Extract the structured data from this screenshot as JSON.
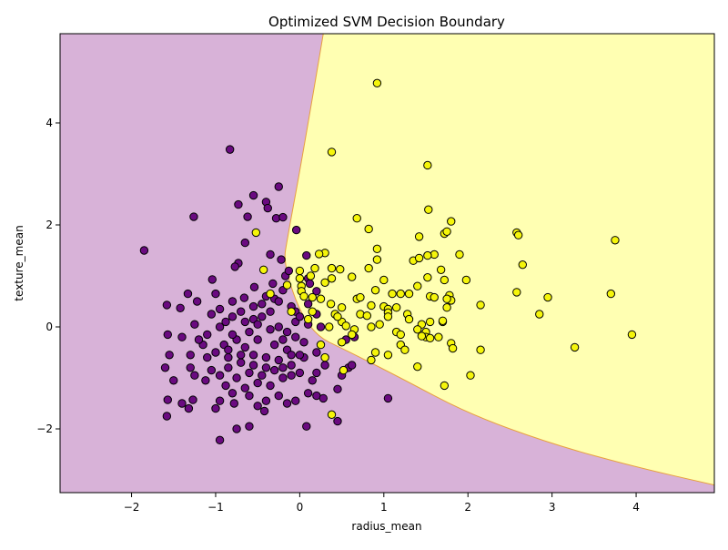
{
  "chart_data": {
    "type": "scatter",
    "title": "Optimized SVM Decision Boundary",
    "xlabel": "radius_mean",
    "ylabel": "texture_mean",
    "xlim": [
      -2.85,
      4.93
    ],
    "ylim": [
      -3.25,
      5.75
    ],
    "x_ticks": [
      -2,
      -1,
      0,
      1,
      2,
      3,
      4
    ],
    "y_ticks": [
      -2,
      0,
      2,
      4
    ],
    "grid": false,
    "legend": "none",
    "region_colors": {
      "class_0": "#d8b2d8",
      "class_1": "#ffffb2",
      "boundary": "#e8a040"
    },
    "boundary_curve": [
      [
        0.28,
        5.75
      ],
      [
        0.05,
        3.5
      ],
      [
        -0.14,
        1.8
      ],
      [
        -0.2,
        1.2
      ],
      [
        0.1,
        -0.1
      ],
      [
        0.6,
        -0.5
      ],
      [
        1.2,
        -1.0
      ],
      [
        2.0,
        -1.7
      ],
      [
        3.0,
        -2.3
      ],
      [
        4.0,
        -2.75
      ],
      [
        4.93,
        -3.1
      ]
    ],
    "series": [
      {
        "color": "#6a0a80",
        "points": [
          [
            -1.85,
            1.5
          ],
          [
            -0.83,
            3.48
          ],
          [
            -0.25,
            2.75
          ],
          [
            -0.73,
            2.4
          ],
          [
            -0.4,
            2.45
          ],
          [
            -0.55,
            2.58
          ],
          [
            -1.26,
            2.16
          ],
          [
            -0.62,
            2.16
          ],
          [
            -0.38,
            2.33
          ],
          [
            -0.28,
            2.13
          ],
          [
            -0.2,
            2.15
          ],
          [
            -0.04,
            1.9
          ],
          [
            -0.65,
            1.65
          ],
          [
            -0.35,
            1.42
          ],
          [
            -0.73,
            1.25
          ],
          [
            -0.77,
            1.18
          ],
          [
            0.08,
            1.4
          ],
          [
            -0.22,
            1.32
          ],
          [
            -1.04,
            0.93
          ],
          [
            -0.17,
            1.0
          ],
          [
            -0.13,
            1.1
          ],
          [
            -1.33,
            0.65
          ],
          [
            -1.22,
            0.5
          ],
          [
            -1.42,
            0.37
          ],
          [
            -1.58,
            0.43
          ],
          [
            -1.0,
            0.65
          ],
          [
            -0.8,
            0.5
          ],
          [
            -0.66,
            0.57
          ],
          [
            -0.54,
            0.78
          ],
          [
            -0.32,
            0.85
          ],
          [
            -0.2,
            0.72
          ],
          [
            -0.45,
            0.45
          ],
          [
            -0.35,
            0.3
          ],
          [
            -0.55,
            0.15
          ],
          [
            -0.88,
            0.1
          ],
          [
            -1.05,
            0.25
          ],
          [
            -1.25,
            0.05
          ],
          [
            -1.4,
            -0.2
          ],
          [
            -1.57,
            -0.15
          ],
          [
            -1.15,
            -0.35
          ],
          [
            -1.3,
            -0.55
          ],
          [
            -1.55,
            -0.55
          ],
          [
            -1.6,
            -0.8
          ],
          [
            -1.5,
            -1.05
          ],
          [
            -1.3,
            -0.8
          ],
          [
            -1.25,
            -0.95
          ],
          [
            -1.12,
            -1.05
          ],
          [
            -1.05,
            -0.85
          ],
          [
            -0.95,
            -0.95
          ],
          [
            -0.88,
            -1.15
          ],
          [
            -0.8,
            -1.3
          ],
          [
            -0.95,
            -1.45
          ],
          [
            -0.78,
            -1.5
          ],
          [
            -0.6,
            -1.35
          ],
          [
            -0.5,
            -1.55
          ],
          [
            -0.4,
            -1.45
          ],
          [
            -0.42,
            -1.65
          ],
          [
            -0.6,
            -1.95
          ],
          [
            -0.75,
            -2.0
          ],
          [
            -0.95,
            -2.22
          ],
          [
            -1.32,
            -1.6
          ],
          [
            -1.4,
            -1.5
          ],
          [
            -1.58,
            -1.75
          ],
          [
            -1.57,
            -1.43
          ],
          [
            -1.27,
            -1.43
          ],
          [
            -1.0,
            -1.6
          ],
          [
            -0.25,
            -1.35
          ],
          [
            -0.15,
            -1.5
          ],
          [
            -0.05,
            -1.45
          ],
          [
            0.1,
            -1.3
          ],
          [
            0.2,
            -1.35
          ],
          [
            0.28,
            -1.4
          ],
          [
            0.08,
            -1.95
          ],
          [
            0.45,
            -1.85
          ],
          [
            1.05,
            -1.4
          ],
          [
            0.45,
            -1.22
          ],
          [
            0.15,
            -1.05
          ],
          [
            0.0,
            -0.9
          ],
          [
            -0.1,
            -0.75
          ],
          [
            0.05,
            -0.6
          ],
          [
            0.2,
            -0.5
          ],
          [
            0.3,
            -0.75
          ],
          [
            0.2,
            -0.9
          ],
          [
            0.55,
            -0.25
          ],
          [
            0.65,
            -0.2
          ],
          [
            0.5,
            -0.95
          ],
          [
            0.58,
            -0.8
          ],
          [
            0.62,
            -0.75
          ],
          [
            -0.05,
            -0.2
          ],
          [
            -0.15,
            -0.1
          ],
          [
            -0.25,
            0.0
          ],
          [
            -0.05,
            0.1
          ],
          [
            0.1,
            0.05
          ],
          [
            0.2,
            0.25
          ],
          [
            0.25,
            0.0
          ],
          [
            0.1,
            0.45
          ],
          [
            0.2,
            0.7
          ],
          [
            0.1,
            0.95
          ],
          [
            0.12,
            0.85
          ],
          [
            -0.05,
            0.3
          ],
          [
            -0.3,
            0.55
          ],
          [
            -0.45,
            0.2
          ],
          [
            -0.6,
            -0.1
          ],
          [
            -0.75,
            -0.25
          ],
          [
            -0.9,
            -0.35
          ],
          [
            -1.0,
            -0.5
          ],
          [
            -0.85,
            -0.6
          ],
          [
            -0.7,
            -0.7
          ],
          [
            -0.55,
            -0.55
          ],
          [
            -0.4,
            -0.6
          ],
          [
            -0.3,
            -0.85
          ],
          [
            -0.45,
            -0.95
          ],
          [
            -0.6,
            -0.9
          ],
          [
            -0.75,
            -1.0
          ],
          [
            -0.65,
            -1.2
          ],
          [
            -0.5,
            -1.1
          ],
          [
            -0.35,
            -1.15
          ],
          [
            -0.2,
            -1.0
          ],
          [
            -0.1,
            -0.95
          ],
          [
            0.0,
            -0.55
          ],
          [
            -0.15,
            -0.45
          ],
          [
            -0.3,
            -0.35
          ],
          [
            -0.5,
            -0.25
          ],
          [
            -0.65,
            -0.4
          ],
          [
            -0.8,
            -0.15
          ],
          [
            -0.95,
            0.0
          ],
          [
            -1.1,
            -0.15
          ],
          [
            -1.2,
            -0.25
          ],
          [
            -0.7,
            0.3
          ],
          [
            -0.55,
            0.4
          ],
          [
            -0.4,
            0.6
          ],
          [
            -0.25,
            0.5
          ],
          [
            -0.1,
            0.4
          ],
          [
            0.0,
            0.2
          ],
          [
            -0.2,
            -0.25
          ],
          [
            -0.35,
            -0.05
          ],
          [
            -0.5,
            0.05
          ],
          [
            -0.65,
            0.1
          ],
          [
            -0.85,
            -0.45
          ],
          [
            -0.7,
            -0.55
          ],
          [
            -0.55,
            -0.75
          ],
          [
            -0.4,
            -0.8
          ],
          [
            -0.25,
            -0.65
          ],
          [
            -0.1,
            -0.55
          ],
          [
            0.05,
            -0.3
          ],
          [
            -0.2,
            -0.8
          ],
          [
            -0.85,
            -0.8
          ],
          [
            -1.1,
            -0.6
          ],
          [
            -0.95,
            0.35
          ],
          [
            -0.8,
            0.2
          ]
        ]
      },
      {
        "color": "#f5f50a",
        "points": [
          [
            0.92,
            4.78
          ],
          [
            0.38,
            3.43
          ],
          [
            1.52,
            3.17
          ],
          [
            1.53,
            2.3
          ],
          [
            0.68,
            2.13
          ],
          [
            1.8,
            2.07
          ],
          [
            -0.52,
            1.85
          ],
          [
            0.82,
            1.92
          ],
          [
            0.92,
            1.53
          ],
          [
            1.42,
            1.77
          ],
          [
            1.72,
            1.83
          ],
          [
            1.75,
            1.87
          ],
          [
            2.58,
            1.85
          ],
          [
            2.6,
            1.8
          ],
          [
            3.75,
            1.7
          ],
          [
            0.3,
            1.45
          ],
          [
            0.23,
            1.43
          ],
          [
            1.6,
            1.42
          ],
          [
            1.9,
            1.42
          ],
          [
            1.52,
            1.4
          ],
          [
            1.35,
            1.3
          ],
          [
            1.42,
            1.35
          ],
          [
            0.92,
            1.32
          ],
          [
            2.65,
            1.22
          ],
          [
            0.18,
            1.15
          ],
          [
            0.38,
            1.15
          ],
          [
            0.48,
            1.13
          ],
          [
            0.82,
            1.15
          ],
          [
            1.68,
            1.12
          ],
          [
            -0.43,
            1.12
          ],
          [
            0.0,
            1.1
          ],
          [
            0.13,
            1.0
          ],
          [
            0.0,
            0.95
          ],
          [
            0.38,
            0.95
          ],
          [
            0.62,
            0.98
          ],
          [
            1.0,
            0.92
          ],
          [
            1.52,
            0.97
          ],
          [
            1.72,
            0.92
          ],
          [
            1.98,
            0.92
          ],
          [
            0.3,
            0.87
          ],
          [
            -0.15,
            0.82
          ],
          [
            0.02,
            0.8
          ],
          [
            1.4,
            0.8
          ],
          [
            0.02,
            0.7
          ],
          [
            0.9,
            0.72
          ],
          [
            -0.35,
            0.65
          ],
          [
            0.15,
            0.58
          ],
          [
            0.68,
            0.55
          ],
          [
            0.72,
            0.58
          ],
          [
            1.1,
            0.65
          ],
          [
            1.2,
            0.65
          ],
          [
            1.3,
            0.65
          ],
          [
            1.55,
            0.6
          ],
          [
            1.6,
            0.58
          ],
          [
            1.78,
            0.62
          ],
          [
            1.8,
            0.52
          ],
          [
            1.75,
            0.55
          ],
          [
            2.58,
            0.68
          ],
          [
            2.95,
            0.58
          ],
          [
            3.7,
            0.65
          ],
          [
            2.15,
            0.43
          ],
          [
            0.37,
            0.45
          ],
          [
            0.85,
            0.42
          ],
          [
            1.0,
            0.4
          ],
          [
            1.05,
            0.35
          ],
          [
            1.05,
            0.28
          ],
          [
            1.28,
            0.25
          ],
          [
            1.75,
            0.38
          ],
          [
            0.42,
            0.25
          ],
          [
            0.72,
            0.25
          ],
          [
            0.8,
            0.22
          ],
          [
            1.15,
            0.38
          ],
          [
            1.05,
            0.2
          ],
          [
            1.3,
            0.15
          ],
          [
            1.45,
            0.05
          ],
          [
            1.55,
            0.1
          ],
          [
            1.7,
            0.1
          ],
          [
            1.7,
            0.12
          ],
          [
            2.85,
            0.25
          ],
          [
            0.5,
            0.1
          ],
          [
            0.55,
            0.02
          ],
          [
            0.65,
            -0.05
          ],
          [
            0.62,
            -0.15
          ],
          [
            0.85,
            0.0
          ],
          [
            0.95,
            0.05
          ],
          [
            1.15,
            -0.1
          ],
          [
            1.2,
            -0.15
          ],
          [
            1.4,
            -0.05
          ],
          [
            1.5,
            -0.1
          ],
          [
            1.5,
            -0.2
          ],
          [
            1.55,
            -0.22
          ],
          [
            1.45,
            -0.18
          ],
          [
            1.65,
            -0.2
          ],
          [
            1.8,
            -0.32
          ],
          [
            1.82,
            -0.42
          ],
          [
            1.2,
            -0.35
          ],
          [
            1.25,
            -0.45
          ],
          [
            1.05,
            -0.55
          ],
          [
            0.9,
            -0.5
          ],
          [
            0.85,
            -0.65
          ],
          [
            1.4,
            -0.78
          ],
          [
            3.95,
            -0.15
          ],
          [
            3.27,
            -0.4
          ],
          [
            2.15,
            -0.45
          ],
          [
            2.03,
            -0.95
          ],
          [
            1.72,
            -1.15
          ],
          [
            0.3,
            -0.6
          ],
          [
            0.25,
            -0.35
          ],
          [
            0.5,
            -0.3
          ],
          [
            0.52,
            -0.85
          ],
          [
            0.38,
            -1.72
          ],
          [
            0.5,
            0.38
          ],
          [
            0.35,
            0.0
          ],
          [
            0.25,
            0.55
          ],
          [
            0.05,
            0.6
          ],
          [
            0.45,
            0.2
          ],
          [
            -0.1,
            0.3
          ],
          [
            0.1,
            0.15
          ],
          [
            0.15,
            0.3
          ]
        ]
      }
    ]
  }
}
